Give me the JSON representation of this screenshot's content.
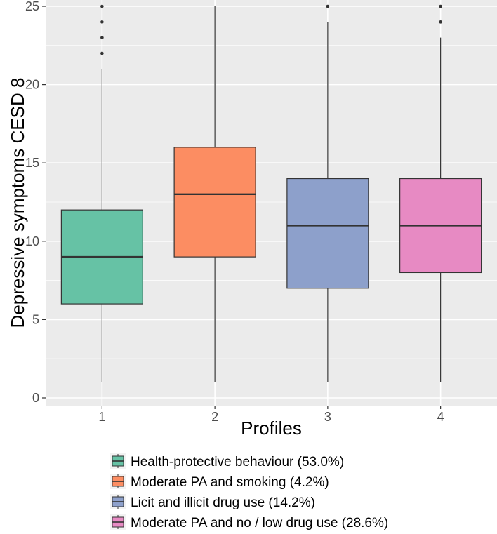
{
  "chart_data": {
    "type": "box",
    "xlabel": "Profiles",
    "ylabel": "Depressive symptoms CESD 8",
    "categories": [
      "1",
      "2",
      "3",
      "4"
    ],
    "ylim": [
      0,
      25
    ],
    "yticks": [
      0,
      5,
      10,
      15,
      20,
      25
    ],
    "grid": true,
    "legend_position": "bottom",
    "series": [
      {
        "category": "1",
        "name": "Health-protective behaviour (53.0%)",
        "color": "#66c2a5",
        "whisker_low": 1,
        "q1": 6,
        "median": 9,
        "q3": 12,
        "whisker_high": 21,
        "outliers": [
          22,
          23,
          24,
          25
        ]
      },
      {
        "category": "2",
        "name": "Moderate PA and smoking (4.2%)",
        "color": "#fc8d62",
        "whisker_low": 1,
        "q1": 9,
        "median": 13,
        "q3": 16,
        "whisker_high": 25,
        "outliers": []
      },
      {
        "category": "3",
        "name": "Licit and illicit drug use (14.2%)",
        "color": "#8da0cb",
        "whisker_low": 1,
        "q1": 7,
        "median": 11,
        "q3": 14,
        "whisker_high": 24,
        "outliers": [
          25
        ]
      },
      {
        "category": "4",
        "name": "Moderate PA and no / low drug use (28.6%)",
        "color": "#e78ac3",
        "whisker_low": 1,
        "q1": 8,
        "median": 11,
        "q3": 14,
        "whisker_high": 23,
        "outliers": [
          24,
          25
        ]
      }
    ]
  },
  "colors": {
    "panel_background": "#ebebeb",
    "grid_major": "#ffffff",
    "box_outline": "#333333"
  }
}
